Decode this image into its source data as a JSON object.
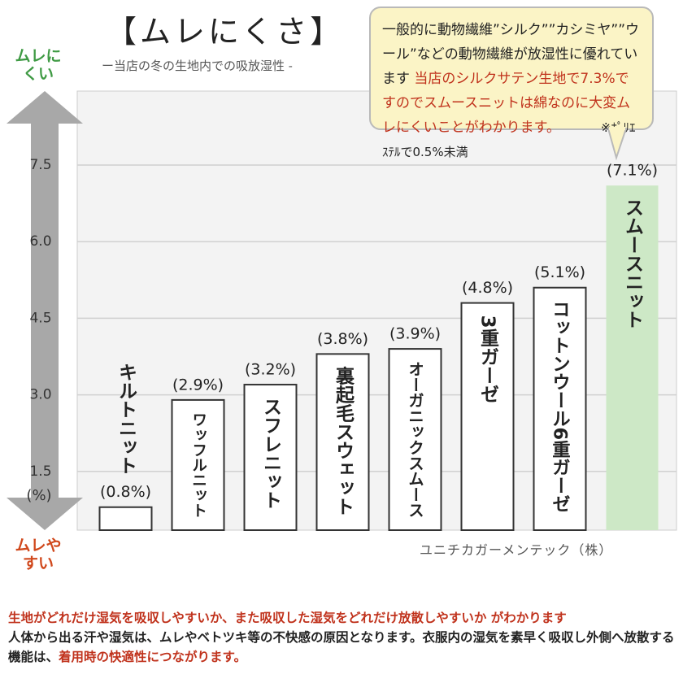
{
  "title": "【ムレにくさ】",
  "subtitle": "ー当店の冬の生地内での吸放湿性 -",
  "callout": [
    "一般的に動物繊維”シルク””カシミヤ””ウール”などの動物繊維が放湿性に優れています ",
    "当店のシルクサテン生地で7.3%ですのでスムースニットは綿なのに大変ムレにくいことがわかります。",
    "※ﾎﾟﾘｴｽﾃﾙで0.5%未満"
  ],
  "arrow_top": "ムレにくい",
  "arrow_bottom": "ムレやすい",
  "credit": "ユニチカガーメンテック（株）",
  "footer": [
    "生地がどれだけ湿気を吸収しやすいか、また吸収した湿気をどれだけ放散しやすいか がわかります",
    "人体から出る汗や湿気は、ムレやベトツキ等の不快感の原因となります。衣服内の湿気を素早く吸収し外側へ放散する機能は、",
    "着用時の快適性につながります。"
  ],
  "chart_data": {
    "type": "bar",
    "y_label": "(%)",
    "categories": [
      "キルトニット",
      "ワッフルニット",
      "スフレニット",
      "裏起毛スウェット",
      "オーガニックスムース",
      "3重ガーゼ",
      "コットンウール6重ガーゼ",
      "スムースニット"
    ],
    "values": [
      0.8,
      2.9,
      3.2,
      3.8,
      3.9,
      4.8,
      5.1,
      7.1
    ],
    "value_labels": [
      "(0.8%)",
      "(2.9%)",
      "(3.2%)",
      "(3.8%)",
      "(3.9%)",
      "(4.8%)",
      "(5.1%)",
      "(7.1%)"
    ],
    "colors": [
      "#ffffff",
      "#ffffff",
      "#ffffff",
      "#ffffff",
      "#ffffff",
      "#ffffff",
      "#ffffff",
      "#cde8c6"
    ],
    "ylim": [
      0.35,
      8.95
    ],
    "yticks": [
      1.5,
      {
        "value": 3,
        "label": "3.0"
      },
      4.5,
      {
        "value": 6,
        "label": "6.0"
      },
      7.5
    ],
    "grid": true
  }
}
